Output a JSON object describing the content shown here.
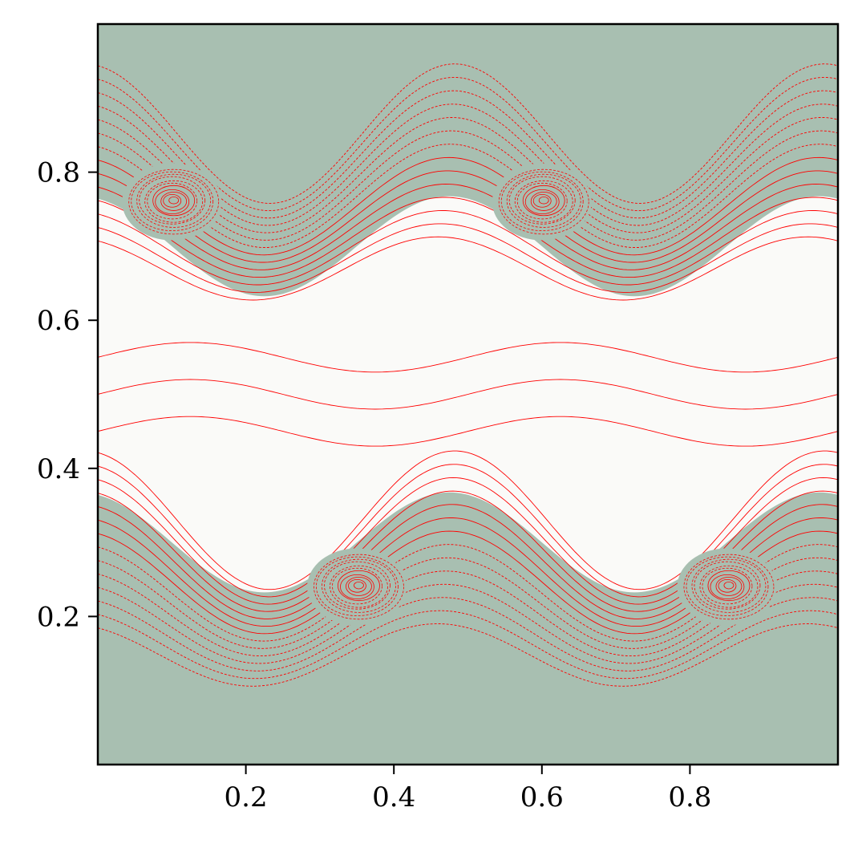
{
  "chart_data": {
    "type": "contour",
    "title": "",
    "xlabel": "",
    "ylabel": "",
    "xlim": [
      0.0,
      1.0
    ],
    "ylim": [
      0.0,
      1.0
    ],
    "xticks": [
      {
        "value": 0.2,
        "label": "0.2"
      },
      {
        "value": 0.4,
        "label": "0.4"
      },
      {
        "value": 0.6,
        "label": "0.6"
      },
      {
        "value": 0.8,
        "label": "0.8"
      }
    ],
    "yticks": [
      {
        "value": 0.2,
        "label": "0.2"
      },
      {
        "value": 0.4,
        "label": "0.4"
      },
      {
        "value": 0.6,
        "label": "0.6"
      },
      {
        "value": 0.8,
        "label": "0.8"
      }
    ],
    "grid": false,
    "colors": {
      "background_fill": "#a8bfb1",
      "shear_layer_fill": "#fafaf8",
      "contour_line": "#ff0000",
      "axes": "#000000"
    },
    "features": {
      "upper_shear_layer": {
        "center_y": 0.74,
        "vortex_cores": [
          {
            "x": 0.1,
            "y": 0.76
          },
          {
            "x": 0.6,
            "y": 0.76
          }
        ]
      },
      "lower_shear_layer": {
        "center_y": 0.26,
        "vortex_cores": [
          {
            "x": 0.35,
            "y": 0.24
          },
          {
            "x": 0.85,
            "y": 0.24
          }
        ]
      }
    }
  }
}
